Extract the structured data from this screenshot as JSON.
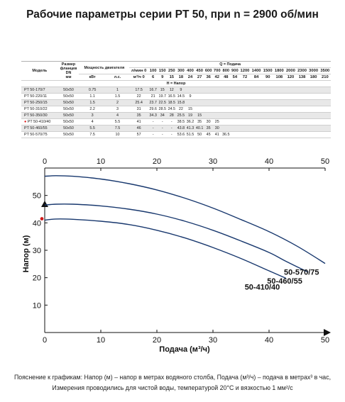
{
  "title": "Рабочие параметры серии PT 50, при n = 2900 об/мин",
  "table": {
    "h_model": "Модель",
    "h_size": [
      "Размер",
      "фланцев",
      "DN",
      "мм"
    ],
    "h_power": "Мощность двигателя",
    "h_kw": "кВт",
    "h_hp": "л.с.",
    "h_q_label": "Q = Подача",
    "h_h_label": "H = Напор",
    "unit_row1": "л/мин",
    "unit_row2": "м³/ч",
    "q_lpm": [
      "0",
      "100",
      "150",
      "250",
      "300",
      "400",
      "450",
      "600",
      "700",
      "800",
      "900",
      "1200",
      "1400",
      "1500",
      "1800",
      "2000",
      "2300",
      "3000",
      "3500"
    ],
    "q_m3h": [
      "0",
      "6",
      "9",
      "15",
      "18",
      "24",
      "27",
      "36",
      "42",
      "48",
      "54",
      "72",
      "84",
      "90",
      "108",
      "120",
      "138",
      "180",
      "210"
    ],
    "rows": [
      {
        "model": "PT 50-170/7",
        "dn": "50x50",
        "kw": "0.75",
        "hp": "1",
        "h": [
          "17.5",
          "16.7",
          "15",
          "12",
          "9",
          "",
          "",
          "",
          "",
          "",
          "",
          "",
          "",
          "",
          "",
          "",
          "",
          "",
          ""
        ]
      },
      {
        "model": "PT 50-220/11",
        "dn": "50x50",
        "kw": "1.1",
        "hp": "1.5",
        "h": [
          "22",
          "21",
          "19.7",
          "16.5",
          "14.5",
          "9",
          "",
          "",
          "",
          "",
          "",
          "",
          "",
          "",
          "",
          "",
          "",
          "",
          ""
        ]
      },
      {
        "model": "PT 50-250/15",
        "dn": "50x50",
        "kw": "1.5",
        "hp": "2",
        "h": [
          "25.4",
          "23.7",
          "22.5",
          "18.5",
          "15.8",
          "",
          "",
          "",
          "",
          "",
          "",
          "",
          "",
          "",
          "",
          "",
          "",
          "",
          ""
        ]
      },
      {
        "model": "PT 50-310/22",
        "dn": "50x50",
        "kw": "2.2",
        "hp": "3",
        "h": [
          "31",
          "29.6",
          "28.5",
          "24.5",
          "22",
          "15",
          "",
          "",
          "",
          "",
          "",
          "",
          "",
          "",
          "",
          "",
          "",
          "",
          ""
        ]
      },
      {
        "model": "PT 50-350/30",
        "dn": "50x50",
        "kw": "3",
        "hp": "4",
        "h": [
          "35",
          "34.3",
          "34",
          "28",
          "25.5",
          "19",
          "15",
          "",
          "",
          "",
          "",
          "",
          "",
          "",
          "",
          "",
          "",
          "",
          ""
        ]
      },
      {
        "model": "PT 50-410/40",
        "dn": "50x50",
        "kw": "4",
        "hp": "5.5",
        "h": [
          "41",
          "-",
          "-",
          "-",
          "38.5",
          "36.2",
          "35",
          "30",
          "25",
          "",
          "",
          "",
          "",
          "",
          "",
          "",
          "",
          "",
          ""
        ]
      },
      {
        "model": "PT 50-460/55",
        "dn": "50x50",
        "kw": "5.5",
        "hp": "7.5",
        "h": [
          "46",
          "-",
          "-",
          "-",
          "43.8",
          "41.3",
          "40.1",
          "35",
          "30",
          "",
          "",
          "",
          "",
          "",
          "",
          "",
          "",
          "",
          ""
        ]
      },
      {
        "model": "PT 50-570/75",
        "dn": "50x50",
        "kw": "7.5",
        "hp": "10",
        "h": [
          "57",
          "-",
          "-",
          "-",
          "53.6",
          "51.5",
          "50",
          "45",
          "41",
          "36.5",
          "",
          "",
          "",
          "",
          "",
          "",
          "",
          "",
          ""
        ]
      }
    ]
  },
  "chart_data": {
    "type": "line",
    "xlabel": "Подача (м³/ч)",
    "ylabel": "Напор (м)",
    "xlim": [
      0,
      50
    ],
    "ylim": [
      0,
      60
    ],
    "x_ticks": [
      "0",
      "10",
      "20",
      "30",
      "40",
      "50"
    ],
    "y_ticks": [
      "10",
      "20",
      "30",
      "40",
      "50"
    ],
    "grid": false,
    "series": [
      {
        "name": "50-570/75",
        "x": [
          0,
          2,
          5,
          10,
          15,
          20,
          25,
          30,
          35,
          40,
          45,
          50
        ],
        "y": [
          57,
          57.2,
          57,
          56,
          54.3,
          52,
          49,
          45.4,
          41.2,
          36.8,
          31.5,
          25.2
        ]
      },
      {
        "name": "50-460/55",
        "x": [
          0,
          2,
          5,
          10,
          15,
          20,
          25,
          30,
          35,
          40,
          43,
          47
        ],
        "y": [
          46.5,
          46.8,
          46.8,
          46.2,
          45,
          43.2,
          40.6,
          37.3,
          33.4,
          29.2,
          26,
          22
        ]
      },
      {
        "name": "50-410/40",
        "x": [
          0,
          2,
          5,
          10,
          15,
          20,
          25,
          30,
          35,
          40,
          43
        ],
        "y": [
          41,
          41.4,
          41.3,
          40.6,
          39.4,
          37.3,
          34.5,
          31,
          27,
          22.5,
          19.8
        ]
      }
    ]
  },
  "colors": {
    "curve": "#18386e",
    "axis": "#111111",
    "marker": "#d11a1a"
  },
  "footnote_line1": "Пояснение к графикам: Напор (м) – напор в метрах водяного столба, Подача (м³/ч) – подача в метрах³ в час,",
  "footnote_line2": "Измерения проводились для чистой воды, температурой 20°С и вязкостью 1 мм²/с"
}
